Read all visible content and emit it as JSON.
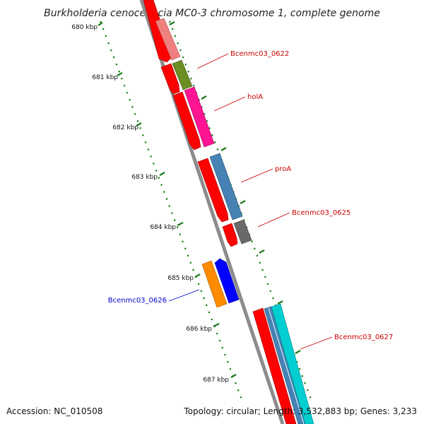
{
  "title": "Burkholderia cenocepacia MC0-3 chromosome 1, complete genome",
  "footer": {
    "accession": "Accession: NC_010508",
    "summary": "Topology: circular; Length: 3,532,883 bp; Genes: 3,233"
  },
  "ticks": [
    {
      "label": "680 kbp"
    },
    {
      "label": "681 kbp"
    },
    {
      "label": "682 kbp"
    },
    {
      "label": "683 kbp"
    },
    {
      "label": "684 kbp"
    },
    {
      "label": "685 kbp"
    },
    {
      "label": "686 kbp"
    },
    {
      "label": "687 kbp"
    }
  ],
  "genes": [
    {
      "label": "Bcenmc03_0622",
      "color": "#cc0000"
    },
    {
      "label": "holA",
      "color": "#cc0000"
    },
    {
      "label": "proA",
      "color": "#cc0000"
    },
    {
      "label": "Bcenmc03_0625",
      "color": "#cc0000"
    },
    {
      "label": "Bcenmc03_0626",
      "color": "#0000cc"
    },
    {
      "label": "Bcenmc03_0627",
      "color": "#cc0000"
    }
  ],
  "colors": {
    "backbone": "#8c8c8c",
    "cds": "#ff0000",
    "gc_track": "#1a7a1a",
    "pink": "#f08080",
    "olive": "#6b8e23",
    "magenta": "#ff1493",
    "steelblue": "#4682b4",
    "gray": "#696969",
    "orange": "#ff8c00",
    "blue": "#0000ff",
    "cyan": "#00ced1"
  }
}
